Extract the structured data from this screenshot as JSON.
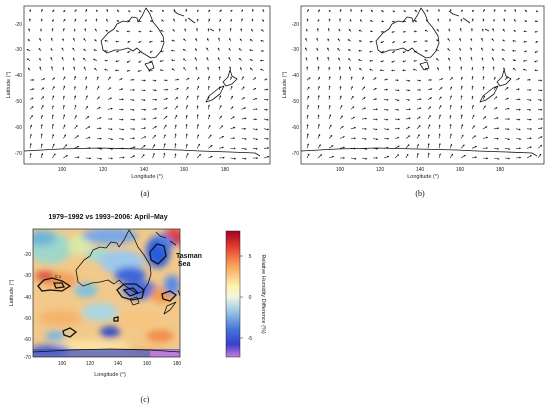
{
  "panel_a": {
    "caption": "(a)",
    "xlabel": "Longitude (°)",
    "ylabel": "Latitude (°)",
    "xticks": [
      "100",
      "120",
      "140",
      "160",
      "180"
    ],
    "yticks": [
      "-20",
      "-30",
      "-40",
      "-50",
      "-60",
      "-70"
    ]
  },
  "panel_b": {
    "caption": "(b)",
    "xlabel": "Longitude (°)",
    "ylabel": "Latitude (°)",
    "xticks": [
      "100",
      "120",
      "140",
      "160",
      "180"
    ],
    "yticks": [
      "-20",
      "-30",
      "-40",
      "-50",
      "-60",
      "-70"
    ]
  },
  "panel_c": {
    "caption": "(c)",
    "title": "1979–1992 vs 1993–2006: April–May",
    "xlabel": "Longitude (°)",
    "ylabel": "Latitude (°)",
    "xticks": [
      "100",
      "120",
      "140",
      "160",
      "180"
    ],
    "yticks": [
      "-20",
      "-30",
      "-40",
      "-50",
      "-60",
      "-70"
    ],
    "annotation": "Tasman\nSea",
    "annotation_line1": "Tasman",
    "annotation_line2": "Sea",
    "contour_label": "0.1",
    "colorbar": {
      "label": "Relative Humidity Difference (%)",
      "ticks": [
        "5",
        "0",
        "-5"
      ]
    }
  },
  "chart_data": [
    {
      "type": "vector-field",
      "panel": "a",
      "xlim": [
        90,
        180
      ],
      "ylim": [
        -72,
        -12
      ],
      "grid": false
    },
    {
      "type": "vector-field",
      "panel": "b",
      "xlim": [
        90,
        180
      ],
      "ylim": [
        -72,
        -12
      ],
      "grid": false
    },
    {
      "type": "heatmap",
      "panel": "c",
      "title": "1979–1992 vs 1993–2006: April–May",
      "xlabel": "Longitude (°)",
      "ylabel": "Latitude (°)",
      "xlim": [
        90,
        180
      ],
      "ylim": [
        -70,
        -15
      ],
      "colorbar_range": [
        -8,
        7
      ],
      "colors": {
        "positive": "#d73027",
        "neutral": "#ffffbf",
        "negative": "#4575b4",
        "extreme_negative": "#b96ad9"
      }
    }
  ]
}
